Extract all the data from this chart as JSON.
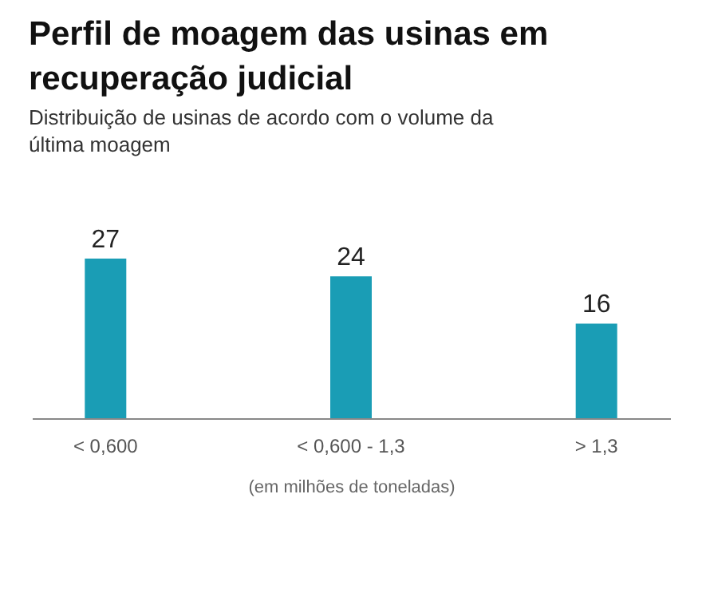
{
  "chart_data": {
    "type": "bar",
    "title": "Perfil de moagem das usinas em recuperação judicial",
    "subtitle": "Distribuição de usinas de acordo com o volume da última moagem",
    "xlabel": "(em milhões de toneladas)",
    "categories": [
      "< 0,600",
      "< 0,600 - 1,3",
      "> 1,3"
    ],
    "values": [
      27,
      24,
      16
    ],
    "color": "#1a9db5",
    "data_labels": true,
    "grid": false
  }
}
